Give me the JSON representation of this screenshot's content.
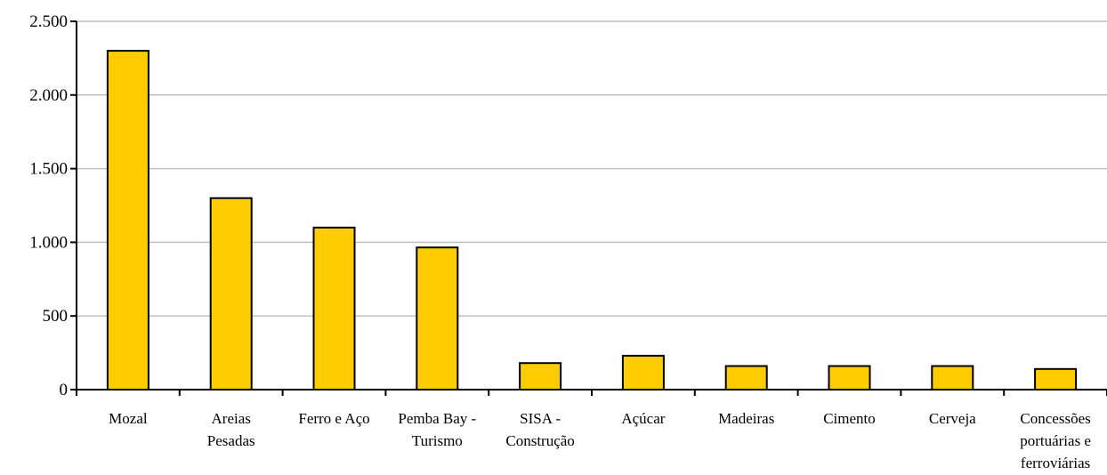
{
  "chart_data": {
    "type": "bar",
    "title": "",
    "xlabel": "",
    "ylabel": "",
    "categories": [
      [
        "Mozal"
      ],
      [
        "Areias",
        "Pesadas"
      ],
      [
        "Ferro e Aço"
      ],
      [
        "Pemba Bay -",
        "Turismo"
      ],
      [
        "SISA -",
        "Construção"
      ],
      [
        "Açúcar"
      ],
      [
        "Madeiras"
      ],
      [
        "Cimento"
      ],
      [
        "Cerveja"
      ],
      [
        "Concessões",
        "portuárias e",
        "ferroviárias"
      ]
    ],
    "values": [
      2300,
      1300,
      1100,
      965,
      180,
      230,
      160,
      160,
      160,
      140
    ],
    "ylim": [
      0,
      2500
    ],
    "yticks": [
      0,
      500,
      1000,
      1500,
      2000,
      2500
    ],
    "ytick_labels": [
      "0",
      "500",
      "1.000",
      "1.500",
      "2.000",
      "2.500"
    ],
    "grid": true,
    "colors": {
      "bar_fill": "#FFCC00",
      "bar_stroke": "#000000",
      "gridline": "#BFBFBF",
      "axis": "#000000"
    }
  }
}
